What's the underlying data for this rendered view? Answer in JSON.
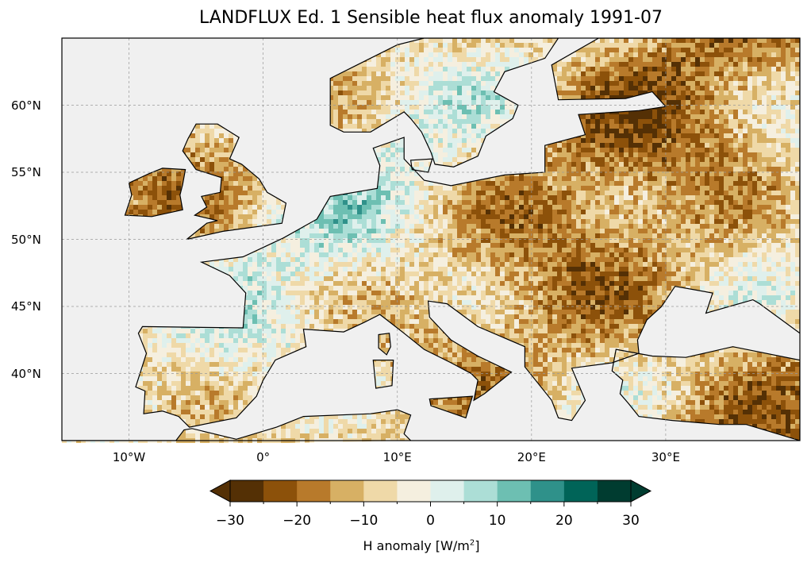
{
  "title": "LANDFLUX Ed. 1 Sensible heat flux anomaly 1991-07",
  "map": {
    "lon_range": [
      -15,
      40
    ],
    "lat_range": [
      35,
      65
    ],
    "x_ticks": [
      {
        "lon": -10,
        "label": "10°W"
      },
      {
        "lon": 0,
        "label": "0°"
      },
      {
        "lon": 10,
        "label": "10°E"
      },
      {
        "lon": 20,
        "label": "20°E"
      },
      {
        "lon": 30,
        "label": "30°E"
      }
    ],
    "y_ticks": [
      {
        "lat": 60,
        "label": "60°N"
      },
      {
        "lat": 55,
        "label": "55°N"
      },
      {
        "lat": 50,
        "label": "50°N"
      },
      {
        "lat": 45,
        "label": "45°N"
      },
      {
        "lat": 40,
        "label": "40°N"
      }
    ],
    "ocean_color": "#f0f0f0",
    "border_color": "#000000"
  },
  "colorbar": {
    "levels": [
      -30,
      -25,
      -20,
      -15,
      -10,
      -5,
      0,
      5,
      10,
      15,
      20,
      25,
      30
    ],
    "colors": [
      "#543005",
      "#8c510a",
      "#b87a2b",
      "#d7b064",
      "#efd9a8",
      "#f5efdf",
      "#dff0ec",
      "#acded6",
      "#6dbfb2",
      "#2f918a",
      "#006458",
      "#003c30"
    ],
    "tick_labels": [
      {
        "value": -30,
        "label": "−30"
      },
      {
        "value": -20,
        "label": "−20"
      },
      {
        "value": -10,
        "label": "−10"
      },
      {
        "value": 0,
        "label": "0"
      },
      {
        "value": 10,
        "label": "10"
      },
      {
        "value": 20,
        "label": "20"
      },
      {
        "value": 30,
        "label": "30"
      }
    ],
    "label_prefix": "H anomaly [W/m",
    "label_exponent": "2",
    "label_suffix": "]"
  }
}
